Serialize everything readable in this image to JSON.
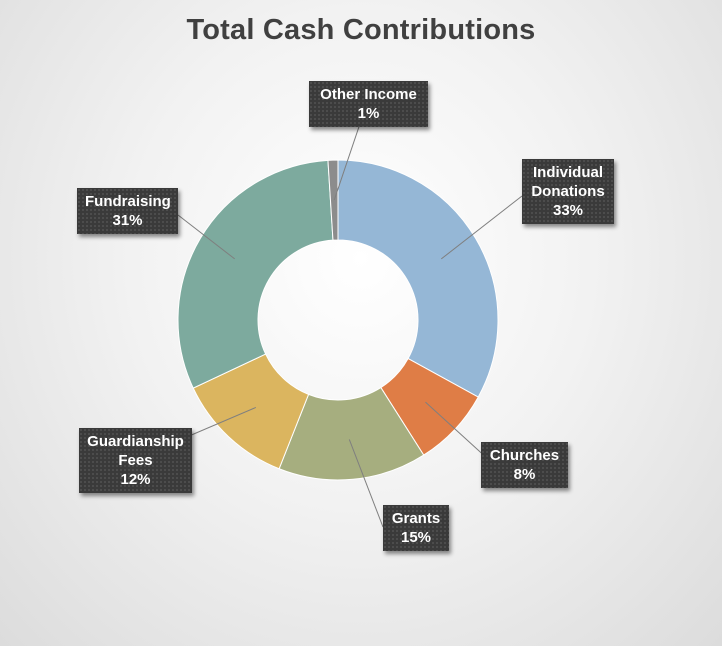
{
  "chart_data": {
    "type": "pie",
    "title": "Total Cash Contributions",
    "hole": true,
    "slices": [
      {
        "label": "Individual Donations",
        "value": 33,
        "value_label": "33%",
        "color": "#95b7d6"
      },
      {
        "label": "Churches",
        "value": 8,
        "value_label": "8%",
        "color": "#df7d46"
      },
      {
        "label": "Grants",
        "value": 15,
        "value_label": "15%",
        "color": "#a6ae7f"
      },
      {
        "label": "Guardianship Fees",
        "value": 12,
        "value_label": "12%",
        "color": "#dbb55f"
      },
      {
        "label": "Fundraising",
        "value": 31,
        "value_label": "31%",
        "color": "#7daa9e"
      },
      {
        "label": "Other Income",
        "value": 1,
        "value_label": "1%",
        "color": "#8c8c8c"
      }
    ],
    "legend": "none"
  }
}
